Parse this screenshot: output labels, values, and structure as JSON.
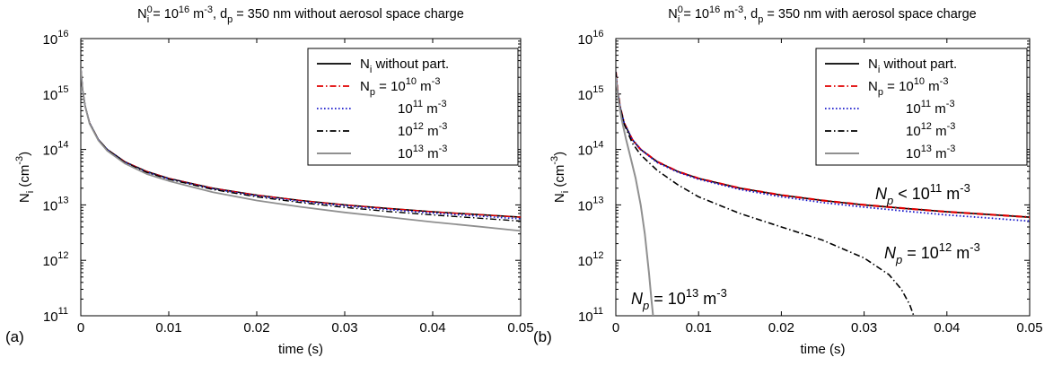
{
  "chart_data": [
    {
      "type": "line",
      "panel_label": "(a)",
      "title_parts": {
        "pre": "N",
        "sup": "0",
        "sub": "i",
        "mid1": " = 10",
        "sup2": "16",
        "mid2": " m",
        "sup3": "-3",
        "mid3": ", d",
        "sub2": "p",
        "post": " = 350 nm without aerosol space charge"
      },
      "xlabel": "time (s)",
      "ylabel_parts": {
        "main": "N",
        "sub": "i",
        "unit": " (cm",
        "sup": "-3",
        "close": ")"
      },
      "xlim": [
        0,
        0.05
      ],
      "ylim": [
        100000000000.0,
        1e+16
      ],
      "yscale": "log",
      "xticks": [
        "0",
        "0.01",
        "0.02",
        "0.03",
        "0.04",
        "0.05"
      ],
      "yticks": [
        {
          "base": "10",
          "exp": "11"
        },
        {
          "base": "10",
          "exp": "12"
        },
        {
          "base": "10",
          "exp": "13"
        },
        {
          "base": "10",
          "exp": "14"
        },
        {
          "base": "10",
          "exp": "15"
        },
        {
          "base": "10",
          "exp": "16"
        }
      ],
      "legend_position": "top-right",
      "legend": [
        {
          "label_main": "N",
          "label_sub": "i",
          "label_rest": " without part.",
          "color": "#000000",
          "dash": "solid"
        },
        {
          "label_main": "N",
          "label_sub": "p",
          "label_rest": " = 10",
          "label_sup": "10",
          "label_unit": " m",
          "label_sup2": "-3",
          "color": "#e00000",
          "dash": "dashdot"
        },
        {
          "label_main": "",
          "label_rest": "10",
          "label_sup": "11",
          "label_unit": " m",
          "label_sup2": "-3",
          "color": "#1a1acc",
          "dash": "dotted"
        },
        {
          "label_main": "",
          "label_rest": "10",
          "label_sup": "12",
          "label_unit": " m",
          "label_sup2": "-3",
          "color": "#000000",
          "dash": "dashdot"
        },
        {
          "label_main": "",
          "label_rest": "10",
          "label_sup": "13",
          "label_unit": " m",
          "label_sup2": "-3",
          "color": "#909090",
          "dash": "solid"
        }
      ],
      "series": [
        {
          "name": "N_i without part.",
          "color": "#000000",
          "dash": "solid",
          "width": 1.6,
          "x": [
            0,
            0.0002,
            0.0005,
            0.001,
            0.002,
            0.003,
            0.005,
            0.0075,
            0.01,
            0.015,
            0.02,
            0.025,
            0.03,
            0.035,
            0.04,
            0.045,
            0.05
          ],
          "y": [
            3000000000000000.0,
            1200000000000000.0,
            600000000000000.0,
            300000000000000.0,
            150000000000000.0,
            100000000000000.0,
            60000000000000.0,
            40000000000000.0,
            30000000000000.0,
            20000000000000.0,
            15000000000000.0,
            12000000000000.0,
            10000000000000.0,
            8600000000000.0,
            7500000000000.0,
            6700000000000.0,
            6000000000000.0
          ]
        },
        {
          "name": "N_p = 10^10 m^-3",
          "color": "#e00000",
          "dash": "dashdot",
          "width": 1.4,
          "x": [
            0,
            0.0002,
            0.0005,
            0.001,
            0.002,
            0.003,
            0.005,
            0.0075,
            0.01,
            0.015,
            0.02,
            0.025,
            0.03,
            0.035,
            0.04,
            0.045,
            0.05
          ],
          "y": [
            3000000000000000.0,
            1200000000000000.0,
            600000000000000.0,
            300000000000000.0,
            150000000000000.0,
            100000000000000.0,
            60000000000000.0,
            40000000000000.0,
            30000000000000.0,
            20000000000000.0,
            15000000000000.0,
            12000000000000.0,
            10000000000000.0,
            8600000000000.0,
            7500000000000.0,
            6700000000000.0,
            6000000000000.0
          ]
        },
        {
          "name": "10^11 m^-3",
          "color": "#1a1acc",
          "dash": "dotted",
          "width": 1.6,
          "x": [
            0,
            0.0002,
            0.0005,
            0.001,
            0.002,
            0.003,
            0.005,
            0.0075,
            0.01,
            0.015,
            0.02,
            0.025,
            0.03,
            0.035,
            0.04,
            0.045,
            0.05
          ],
          "y": [
            3000000000000000.0,
            1200000000000000.0,
            600000000000000.0,
            300000000000000.0,
            150000000000000.0,
            100000000000000.0,
            59000000000000.0,
            39000000000000.0,
            29500000000000.0,
            19500000000000.0,
            14500000000000.0,
            11500000000000.0,
            9600000000000.0,
            8200000000000.0,
            7100000000000.0,
            6300000000000.0,
            5600000000000.0
          ]
        },
        {
          "name": "10^12 m^-3",
          "color": "#000000",
          "dash": "dashdot",
          "width": 1.4,
          "x": [
            0,
            0.0002,
            0.0005,
            0.001,
            0.002,
            0.003,
            0.005,
            0.0075,
            0.01,
            0.015,
            0.02,
            0.025,
            0.03,
            0.035,
            0.04,
            0.045,
            0.05
          ],
          "y": [
            3000000000000000.0,
            1200000000000000.0,
            600000000000000.0,
            300000000000000.0,
            150000000000000.0,
            100000000000000.0,
            58000000000000.0,
            38500000000000.0,
            29000000000000.0,
            19000000000000.0,
            14000000000000.0,
            11000000000000.0,
            9000000000000.0,
            7600000000000.0,
            6600000000000.0,
            5800000000000.0,
            5100000000000.0
          ]
        },
        {
          "name": "10^13 m^-3",
          "color": "#909090",
          "dash": "solid",
          "width": 1.8,
          "x": [
            0,
            0.0002,
            0.0005,
            0.001,
            0.002,
            0.003,
            0.005,
            0.0075,
            0.01,
            0.015,
            0.02,
            0.025,
            0.03,
            0.035,
            0.04,
            0.045,
            0.05
          ],
          "y": [
            3000000000000000.0,
            1200000000000000.0,
            600000000000000.0,
            290000000000000.0,
            145000000000000.0,
            95000000000000.0,
            56000000000000.0,
            36000000000000.0,
            27000000000000.0,
            17000000000000.0,
            12000000000000.0,
            9200000000000.0,
            7300000000000.0,
            6000000000000.0,
            4900000000000.0,
            4100000000000.0,
            3400000000000.0
          ]
        }
      ],
      "annotations": []
    },
    {
      "type": "line",
      "panel_label": "(b)",
      "title_parts": {
        "pre": "N",
        "sup": "0",
        "sub": "i",
        "mid1": " = 10",
        "sup2": "16",
        "mid2": " m",
        "sup3": "-3",
        "mid3": ", d",
        "sub2": "p",
        "post": " = 350 nm with aerosol space charge"
      },
      "xlabel": "time (s)",
      "ylabel_parts": {
        "main": "N",
        "sub": "i",
        "unit": " (cm",
        "sup": "-3",
        "close": ")"
      },
      "xlim": [
        0,
        0.05
      ],
      "ylim": [
        100000000000.0,
        1e+16
      ],
      "yscale": "log",
      "xticks": [
        "0",
        "0.01",
        "0.02",
        "0.03",
        "0.04",
        "0.05"
      ],
      "yticks": [
        {
          "base": "10",
          "exp": "11"
        },
        {
          "base": "10",
          "exp": "12"
        },
        {
          "base": "10",
          "exp": "13"
        },
        {
          "base": "10",
          "exp": "14"
        },
        {
          "base": "10",
          "exp": "15"
        },
        {
          "base": "10",
          "exp": "16"
        }
      ],
      "legend_position": "top-right",
      "legend": [
        {
          "label_main": "N",
          "label_sub": "i",
          "label_rest": " without part.",
          "color": "#000000",
          "dash": "solid"
        },
        {
          "label_main": "N",
          "label_sub": "p",
          "label_rest": " = 10",
          "label_sup": "10",
          "label_unit": " m",
          "label_sup2": "-3",
          "color": "#e00000",
          "dash": "dashdot"
        },
        {
          "label_main": "",
          "label_rest": "10",
          "label_sup": "11",
          "label_unit": " m",
          "label_sup2": "-3",
          "color": "#1a1acc",
          "dash": "dotted"
        },
        {
          "label_main": "",
          "label_rest": "10",
          "label_sup": "12",
          "label_unit": " m",
          "label_sup2": "-3",
          "color": "#000000",
          "dash": "dashdot"
        },
        {
          "label_main": "",
          "label_rest": "10",
          "label_sup": "13",
          "label_unit": " m",
          "label_sup2": "-3",
          "color": "#909090",
          "dash": "solid"
        }
      ],
      "series": [
        {
          "name": "N_i without part.",
          "color": "#000000",
          "dash": "solid",
          "width": 1.6,
          "x": [
            0,
            0.0002,
            0.0005,
            0.001,
            0.002,
            0.003,
            0.005,
            0.0075,
            0.01,
            0.015,
            0.02,
            0.025,
            0.03,
            0.035,
            0.04,
            0.045,
            0.05
          ],
          "y": [
            2500000000000000.0,
            1200000000000000.0,
            600000000000000.0,
            300000000000000.0,
            150000000000000.0,
            100000000000000.0,
            60000000000000.0,
            40000000000000.0,
            30000000000000.0,
            20000000000000.0,
            15000000000000.0,
            12000000000000.0,
            10000000000000.0,
            8600000000000.0,
            7500000000000.0,
            6700000000000.0,
            6000000000000.0
          ]
        },
        {
          "name": "N_p = 10^10 m^-3",
          "color": "#e00000",
          "dash": "dashdot",
          "width": 2.2,
          "x": [
            0,
            0.0002,
            0.0005,
            0.001,
            0.002,
            0.003,
            0.005,
            0.0075,
            0.01,
            0.015,
            0.02,
            0.025,
            0.03,
            0.035,
            0.04,
            0.045,
            0.05
          ],
          "y": [
            2500000000000000.0,
            1200000000000000.0,
            600000000000000.0,
            300000000000000.0,
            150000000000000.0,
            100000000000000.0,
            60000000000000.0,
            40000000000000.0,
            30000000000000.0,
            20000000000000.0,
            15000000000000.0,
            12000000000000.0,
            10000000000000.0,
            8600000000000.0,
            7500000000000.0,
            6700000000000.0,
            6000000000000.0
          ]
        },
        {
          "name": "10^11 m^-3",
          "color": "#1a1acc",
          "dash": "dotted",
          "width": 1.8,
          "x": [
            0,
            0.0002,
            0.0005,
            0.001,
            0.002,
            0.003,
            0.005,
            0.0075,
            0.01,
            0.015,
            0.02,
            0.025,
            0.03,
            0.035,
            0.04,
            0.045,
            0.05
          ],
          "y": [
            2500000000000000.0,
            1200000000000000.0,
            600000000000000.0,
            300000000000000.0,
            150000000000000.0,
            100000000000000.0,
            58000000000000.0,
            39000000000000.0,
            29000000000000.0,
            19000000000000.0,
            14000000000000.0,
            11000000000000.0,
            9100000000000.0,
            7700000000000.0,
            6600000000000.0,
            5800000000000.0,
            5100000000000.0
          ]
        },
        {
          "name": "10^12 m^-3",
          "color": "#000000",
          "dash": "dashdot",
          "width": 1.6,
          "x": [
            0,
            0.0002,
            0.0005,
            0.001,
            0.002,
            0.003,
            0.005,
            0.0075,
            0.01,
            0.015,
            0.02,
            0.025,
            0.03,
            0.033,
            0.0345,
            0.0355,
            0.036
          ],
          "y": [
            2500000000000000.0,
            1200000000000000.0,
            600000000000000.0,
            290000000000000.0,
            130000000000000.0,
            80000000000000.0,
            42000000000000.0,
            23000000000000.0,
            14000000000000.0,
            7000000000000.0,
            4000000000000.0,
            2300000000000.0,
            1100000000000.0,
            550000000000.0,
            300000000000.0,
            160000000000.0,
            100000000000.0
          ]
        },
        {
          "name": "10^13 m^-3",
          "color": "#909090",
          "dash": "solid",
          "width": 2,
          "x": [
            0,
            0.0003,
            0.0007,
            0.0012,
            0.0018,
            0.0024,
            0.003,
            0.0035,
            0.004,
            0.0043,
            0.0045
          ],
          "y": [
            2000000000000000.0,
            800000000000000.0,
            350000000000000.0,
            160000000000000.0,
            70000000000000.0,
            30000000000000.0,
            10000000000000.0,
            3000000000000.0,
            600000000000.0,
            200000000000.0,
            100000000000.0
          ]
        }
      ],
      "annotations": [
        {
          "main": "N",
          "sub": "p",
          "rest": " < 10",
          "sup": "11",
          "unit": " m",
          "sup2": "-3"
        },
        {
          "main": "N",
          "sub": "p",
          "rest": " = 10",
          "sup": "12",
          "unit": " m",
          "sup2": "-3"
        },
        {
          "main": "N",
          "sub": "p",
          "rest": " = 10",
          "sup": "13",
          "unit": " m",
          "sup2": "-3"
        }
      ]
    }
  ]
}
